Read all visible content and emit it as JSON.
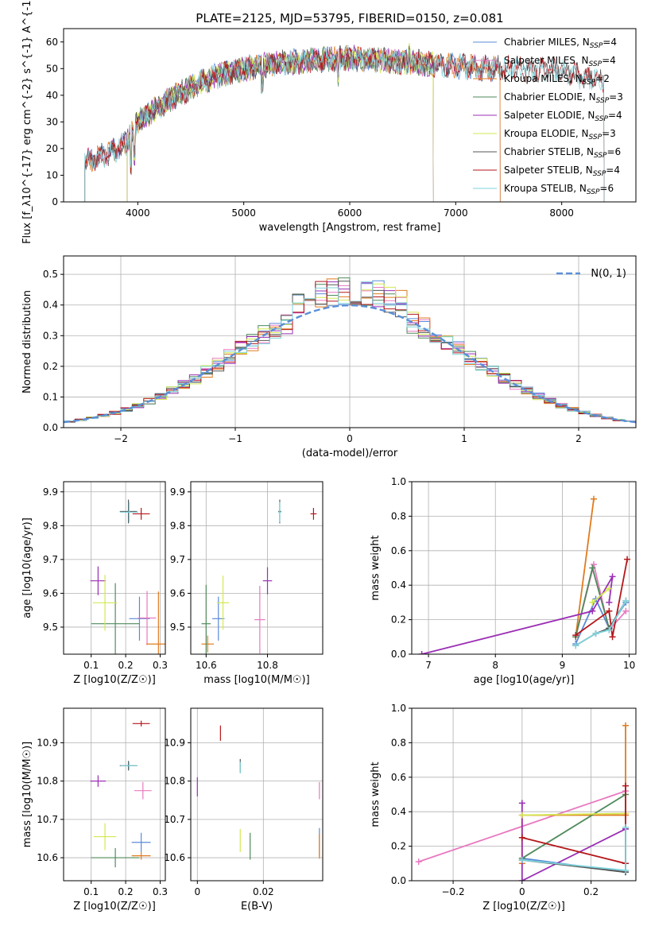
{
  "figure_title": "PLATE=2125, MJD=53795, FIBERID=0150, z=0.081",
  "series_colors": {
    "Chabrier MILES": "#5b8bd8",
    "Salpeter MILES": "#e879c0",
    "Kroupa MILES": "#e07b1f",
    "Chabrier ELODIE": "#4f8a5b",
    "Salpeter ELODIE": "#9b2fb5",
    "Kroupa ELODIE": "#d4e852",
    "Chabrier STELIB": "#555555",
    "Salpeter STELIB": "#b5171b",
    "Kroupa STELIB": "#7fd3dc"
  },
  "chart_data": [
    {
      "id": "spectrum",
      "type": "line",
      "xlabel": "wavelength [Angstrom, rest frame]",
      "ylabel": "Flux [f_λ10^{-17} erg cm^{-2} s^{-1} A^{-1}]",
      "xlim": [
        3300,
        8700
      ],
      "ylim": [
        0,
        65
      ],
      "xticks": [
        4000,
        5000,
        6000,
        7000,
        8000
      ],
      "yticks": [
        0,
        10,
        20,
        30,
        40,
        50,
        60
      ],
      "grid": false,
      "legend": "upper right",
      "legend_entries": [
        {
          "name": "Chabrier MILES",
          "nssp": "4"
        },
        {
          "name": "Salpeter MILES",
          "nssp": "4"
        },
        {
          "name": "Kroupa MILES",
          "nssp": "2"
        },
        {
          "name": "Chabrier ELODIE",
          "nssp": "3"
        },
        {
          "name": "Salpeter ELODIE",
          "nssp": "4"
        },
        {
          "name": "Kroupa ELODIE",
          "nssp": "3"
        },
        {
          "name": "Chabrier STELIB",
          "nssp": "6"
        },
        {
          "name": "Salpeter STELIB",
          "nssp": "4"
        },
        {
          "name": "Kroupa STELIB",
          "nssp": "6"
        }
      ],
      "continuum": [
        [
          3500,
          15
        ],
        [
          3700,
          18
        ],
        [
          3900,
          22
        ],
        [
          4000,
          30
        ],
        [
          4200,
          36
        ],
        [
          4500,
          43
        ],
        [
          4800,
          48
        ],
        [
          5000,
          50
        ],
        [
          5300,
          52
        ],
        [
          5600,
          53
        ],
        [
          6000,
          54
        ],
        [
          6300,
          53
        ],
        [
          6700,
          52
        ],
        [
          7000,
          51
        ],
        [
          7300,
          50
        ],
        [
          7600,
          50
        ],
        [
          8000,
          49
        ],
        [
          8200,
          47
        ],
        [
          8400,
          45
        ]
      ],
      "series_ranges": {
        "Chabrier MILES": [
          3500,
          7420
        ],
        "Salpeter MILES": [
          3500,
          7420
        ],
        "Kroupa MILES": [
          3500,
          7420
        ],
        "Chabrier ELODIE": [
          3900,
          6790
        ],
        "Salpeter ELODIE": [
          3900,
          6790
        ],
        "Kroupa ELODIE": [
          3900,
          6790
        ],
        "Chabrier STELIB": [
          3500,
          8400
        ],
        "Salpeter STELIB": [
          3500,
          8400
        ],
        "Kroupa STELIB": [
          3500,
          8400
        ]
      }
    },
    {
      "id": "residual-histogram",
      "type": "bar",
      "xlabel": "(data-model)/error",
      "ylabel": "Normed distribution",
      "xlim": [
        -2.5,
        2.5
      ],
      "ylim": [
        0,
        0.56
      ],
      "xticks": [
        -2,
        -1,
        0,
        1,
        2
      ],
      "yticks": [
        0.0,
        0.1,
        0.2,
        0.3,
        0.4,
        0.5
      ],
      "grid": true,
      "legend": "upper right",
      "legend_label": "N(0, 1)",
      "bin_width": 0.1
    },
    {
      "id": "z-age",
      "type": "scatter",
      "xlabel": "Z [log10(Z/Z☉)]",
      "ylabel": "age [log10(age/yr)]",
      "xlim": [
        0.02,
        0.315
      ],
      "ylim": [
        9.42,
        9.93
      ],
      "xticks": [
        0.1,
        0.2,
        0.3
      ],
      "yticks": [
        9.5,
        9.6,
        9.7,
        9.8,
        9.9
      ],
      "grid": true,
      "points": [
        {
          "series": "Chabrier MILES",
          "x": 0.24,
          "y": 9.525,
          "xerr": 0.06,
          "yerr": 0.13
        },
        {
          "series": "Salpeter MILES",
          "x": 0.262,
          "y": 9.527,
          "xerr": 0.052,
          "yerr": 0.16
        },
        {
          "series": "Kroupa MILES",
          "x": 0.295,
          "y": 9.45,
          "xerr": 0.07,
          "yerr": 0.31
        },
        {
          "series": "Chabrier ELODIE",
          "x": 0.17,
          "y": 9.51,
          "xerr": 0.14,
          "yerr": 0.24
        },
        {
          "series": "Salpeter ELODIE",
          "x": 0.12,
          "y": 9.637,
          "xerr": 0.045,
          "yerr": 0.085
        },
        {
          "series": "Kroupa ELODIE",
          "x": 0.14,
          "y": 9.572,
          "xerr": 0.07,
          "yerr": 0.165
        },
        {
          "series": "Chabrier STELIB",
          "x": 0.208,
          "y": 9.842,
          "xerr": 0.05,
          "yerr": 0.07
        },
        {
          "series": "Salpeter STELIB",
          "x": 0.245,
          "y": 9.835,
          "xerr": 0.05,
          "yerr": 0.035
        },
        {
          "series": "Kroupa STELIB",
          "x": 0.21,
          "y": 9.84,
          "xerr": 0.052,
          "yerr": 0.06
        }
      ]
    },
    {
      "id": "mass-age",
      "type": "scatter",
      "xlabel": "mass [log10(M/M☉)]",
      "ylabel": "",
      "xlim": [
        10.55,
        10.98
      ],
      "ylim": [
        9.42,
        9.93
      ],
      "xticks": [
        10.6,
        10.8
      ],
      "yticks": [
        9.5,
        9.6,
        9.7,
        9.8,
        9.9
      ],
      "grid": true,
      "points": [
        {
          "series": "Chabrier MILES",
          "x": 10.64,
          "y": 9.525,
          "xerr": 0.04,
          "yerr": 0.13
        },
        {
          "series": "Salpeter MILES",
          "x": 10.775,
          "y": 9.522,
          "xerr": 0.035,
          "yerr": 0.2
        },
        {
          "series": "Kroupa MILES",
          "x": 10.605,
          "y": 9.45,
          "xerr": 0.04,
          "yerr": 0.05
        },
        {
          "series": "Chabrier ELODIE",
          "x": 10.6,
          "y": 9.51,
          "xerr": 0.03,
          "yerr": 0.23
        },
        {
          "series": "Salpeter ELODIE",
          "x": 10.8,
          "y": 9.637,
          "xerr": 0.03,
          "yerr": 0.08
        },
        {
          "series": "Kroupa ELODIE",
          "x": 10.655,
          "y": 9.572,
          "xerr": 0.04,
          "yerr": 0.16
        },
        {
          "series": "Chabrier STELIB",
          "x": 10.84,
          "y": 9.842,
          "xerr": 0.01,
          "yerr": 0.07
        },
        {
          "series": "Salpeter STELIB",
          "x": 10.95,
          "y": 9.835,
          "xerr": 0.02,
          "yerr": 0.035
        },
        {
          "series": "Kroupa STELIB",
          "x": 10.84,
          "y": 9.84,
          "xerr": 0.01,
          "yerr": 0.06
        }
      ]
    },
    {
      "id": "age-weight",
      "type": "line",
      "xlabel": "age [log10(age/yr)]",
      "ylabel": "mass weight",
      "xlim": [
        6.75,
        10.1
      ],
      "ylim": [
        0,
        1.0
      ],
      "xticks": [
        7,
        8,
        9,
        10
      ],
      "yticks": [
        0.0,
        0.2,
        0.4,
        0.6,
        0.8,
        1.0
      ],
      "grid": true,
      "series": [
        {
          "name": "Chabrier MILES",
          "x": [
            9.2,
            9.5,
            9.7,
            9.95
          ],
          "y": [
            0.06,
            0.32,
            0.15,
            0.3
          ]
        },
        {
          "name": "Salpeter MILES",
          "x": [
            9.2,
            9.47,
            9.7,
            9.95
          ],
          "y": [
            0.1,
            0.52,
            0.14,
            0.25
          ]
        },
        {
          "name": "Kroupa MILES",
          "x": [
            9.2,
            9.47
          ],
          "y": [
            0.1,
            0.9
          ]
        },
        {
          "name": "Chabrier ELODIE",
          "x": [
            9.2,
            9.45,
            9.7
          ],
          "y": [
            0.1,
            0.5,
            0.15
          ]
        },
        {
          "name": "Salpeter ELODIE",
          "x": [
            6.9,
            9.45,
            9.75,
            9.7
          ],
          "y": [
            0.0,
            0.25,
            0.45,
            0.3
          ]
        },
        {
          "name": "Kroupa ELODIE",
          "x": [
            9.45,
            9.7
          ],
          "y": [
            0.3,
            0.38
          ]
        },
        {
          "name": "Chabrier STELIB",
          "x": [
            9.2,
            9.5,
            9.7,
            9.95
          ],
          "y": [
            0.05,
            0.12,
            0.15,
            0.31
          ]
        },
        {
          "name": "Salpeter STELIB",
          "x": [
            9.2,
            9.7,
            9.75,
            9.97
          ],
          "y": [
            0.11,
            0.25,
            0.1,
            0.55
          ]
        },
        {
          "name": "Kroupa STELIB",
          "x": [
            9.2,
            9.5,
            9.7,
            9.95
          ],
          "y": [
            0.05,
            0.12,
            0.14,
            0.31
          ]
        }
      ]
    },
    {
      "id": "z-mass",
      "type": "scatter",
      "xlabel": "Z [log10(Z/Z☉)]",
      "ylabel": "mass [log10(M/M☉)]",
      "xlim": [
        0.02,
        0.315
      ],
      "ylim": [
        10.54,
        10.99
      ],
      "xticks": [
        0.1,
        0.2,
        0.3
      ],
      "yticks": [
        10.6,
        10.7,
        10.8,
        10.9
      ],
      "grid": true,
      "points": [
        {
          "series": "Chabrier MILES",
          "x": 0.245,
          "y": 10.64,
          "xerr": 0.055,
          "yerr": 0.05
        },
        {
          "series": "Salpeter MILES",
          "x": 0.25,
          "y": 10.775,
          "xerr": 0.05,
          "yerr": 0.045
        },
        {
          "series": "Kroupa MILES",
          "x": 0.245,
          "y": 10.605,
          "xerr": 0.055,
          "yerr": 0.02
        },
        {
          "series": "Chabrier ELODIE",
          "x": 0.17,
          "y": 10.6,
          "xerr": 0.14,
          "yerr": 0.05
        },
        {
          "series": "Salpeter ELODIE",
          "x": 0.12,
          "y": 10.8,
          "xerr": 0.045,
          "yerr": 0.03
        },
        {
          "series": "Kroupa ELODIE",
          "x": 0.14,
          "y": 10.655,
          "xerr": 0.065,
          "yerr": 0.07
        },
        {
          "series": "Chabrier STELIB",
          "x": 0.208,
          "y": 10.84,
          "xerr": 0.05,
          "yerr": 0.025
        },
        {
          "series": "Salpeter STELIB",
          "x": 0.245,
          "y": 10.95,
          "xerr": 0.05,
          "yerr": 0.015
        },
        {
          "series": "Kroupa STELIB",
          "x": 0.21,
          "y": 10.84,
          "xerr": 0.05,
          "yerr": 0.02
        }
      ]
    },
    {
      "id": "ebv-mass",
      "type": "scatter",
      "xlabel": "E(B-V)",
      "ylabel": "",
      "xlim": [
        -0.002,
        0.038
      ],
      "ylim": [
        10.54,
        10.99
      ],
      "xticks": [
        0.0,
        0.02
      ],
      "yticks": [
        10.6,
        10.7,
        10.8,
        10.9
      ],
      "grid": true,
      "points": [
        {
          "series": "Chabrier MILES",
          "x": 0.037,
          "y": 10.64,
          "xerr": 0.0,
          "yerr": 0.075
        },
        {
          "series": "Salpeter MILES",
          "x": 0.037,
          "y": 10.775,
          "xerr": 0.0,
          "yerr": 0.045
        },
        {
          "series": "Kroupa MILES",
          "x": 0.037,
          "y": 10.63,
          "xerr": 0.0,
          "yerr": 0.065
        },
        {
          "series": "Chabrier ELODIE",
          "x": 0.016,
          "y": 10.63,
          "xerr": 0.0,
          "yerr": 0.07
        },
        {
          "series": "Salpeter ELODIE",
          "x": 0.0,
          "y": 10.785,
          "xerr": 0.0,
          "yerr": 0.05
        },
        {
          "series": "Kroupa ELODIE",
          "x": 0.013,
          "y": 10.645,
          "xerr": 0.0,
          "yerr": 0.06
        },
        {
          "series": "Chabrier STELIB",
          "x": 0.013,
          "y": 10.84,
          "xerr": 0.0,
          "yerr": 0.035
        },
        {
          "series": "Salpeter STELIB",
          "x": 0.007,
          "y": 10.925,
          "xerr": 0.0,
          "yerr": 0.04
        },
        {
          "series": "Kroupa STELIB",
          "x": 0.013,
          "y": 10.835,
          "xerr": 0.0,
          "yerr": 0.03
        }
      ]
    },
    {
      "id": "z-weight",
      "type": "line",
      "xlabel": "Z [log10(Z/Z☉)]",
      "ylabel": "mass weight",
      "xlim": [
        -0.32,
        0.33
      ],
      "ylim": [
        0,
        1.0
      ],
      "xticks": [
        -0.2,
        0.0,
        0.2
      ],
      "yticks": [
        0.0,
        0.2,
        0.4,
        0.6,
        0.8,
        1.0
      ],
      "grid": true,
      "series": [
        {
          "name": "Chabrier MILES",
          "x": [
            0.0,
            0.3,
            0.3
          ],
          "y": [
            0.13,
            0.05,
            0.3
          ]
        },
        {
          "name": "Salpeter MILES",
          "x": [
            -0.3,
            0.3
          ],
          "y": [
            0.11,
            0.52
          ]
        },
        {
          "name": "Kroupa MILES",
          "x": [
            0.0,
            0.0,
            0.3,
            0.3
          ],
          "y": [
            0.1,
            0.38,
            0.38,
            0.9
          ]
        },
        {
          "name": "Chabrier ELODIE",
          "x": [
            0.0,
            0.3
          ],
          "y": [
            0.13,
            0.5
          ]
        },
        {
          "name": "Salpeter ELODIE",
          "x": [
            0.0,
            0.0,
            0.3
          ],
          "y": [
            0.45,
            0.0,
            0.3
          ]
        },
        {
          "name": "Kroupa ELODIE",
          "x": [
            0.0,
            0.3
          ],
          "y": [
            0.38,
            0.39
          ]
        },
        {
          "name": "Chabrier STELIB",
          "x": [
            0.0,
            0.3,
            0.3
          ],
          "y": [
            0.12,
            0.05,
            0.31
          ]
        },
        {
          "name": "Salpeter STELIB",
          "x": [
            0.0,
            0.3,
            0.3
          ],
          "y": [
            0.25,
            0.1,
            0.55
          ]
        },
        {
          "name": "Kroupa STELIB",
          "x": [
            0.0,
            0.3,
            0.3
          ],
          "y": [
            0.12,
            0.06,
            0.31
          ]
        }
      ]
    }
  ]
}
